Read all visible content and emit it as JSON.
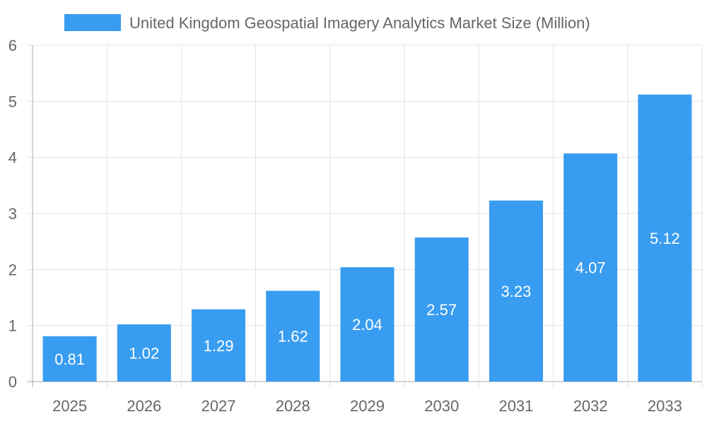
{
  "chart_data": {
    "type": "bar",
    "categories": [
      "2025",
      "2026",
      "2027",
      "2028",
      "2029",
      "2030",
      "2031",
      "2032",
      "2033"
    ],
    "series": [
      {
        "name": "United Kingdom Geospatial Imagery Analytics Market Size (Million)",
        "values": [
          0.81,
          1.02,
          1.29,
          1.62,
          2.04,
          2.57,
          3.23,
          4.07,
          5.12
        ]
      }
    ],
    "ylim": [
      0,
      6
    ],
    "yticks": [
      0,
      1,
      2,
      3,
      4,
      5,
      6
    ],
    "grid": true,
    "legend": "top",
    "colors": {
      "bar": "#389cf0",
      "grid": "#e0e0e0",
      "axis": "#aaaaaa",
      "text": "#666666"
    }
  }
}
